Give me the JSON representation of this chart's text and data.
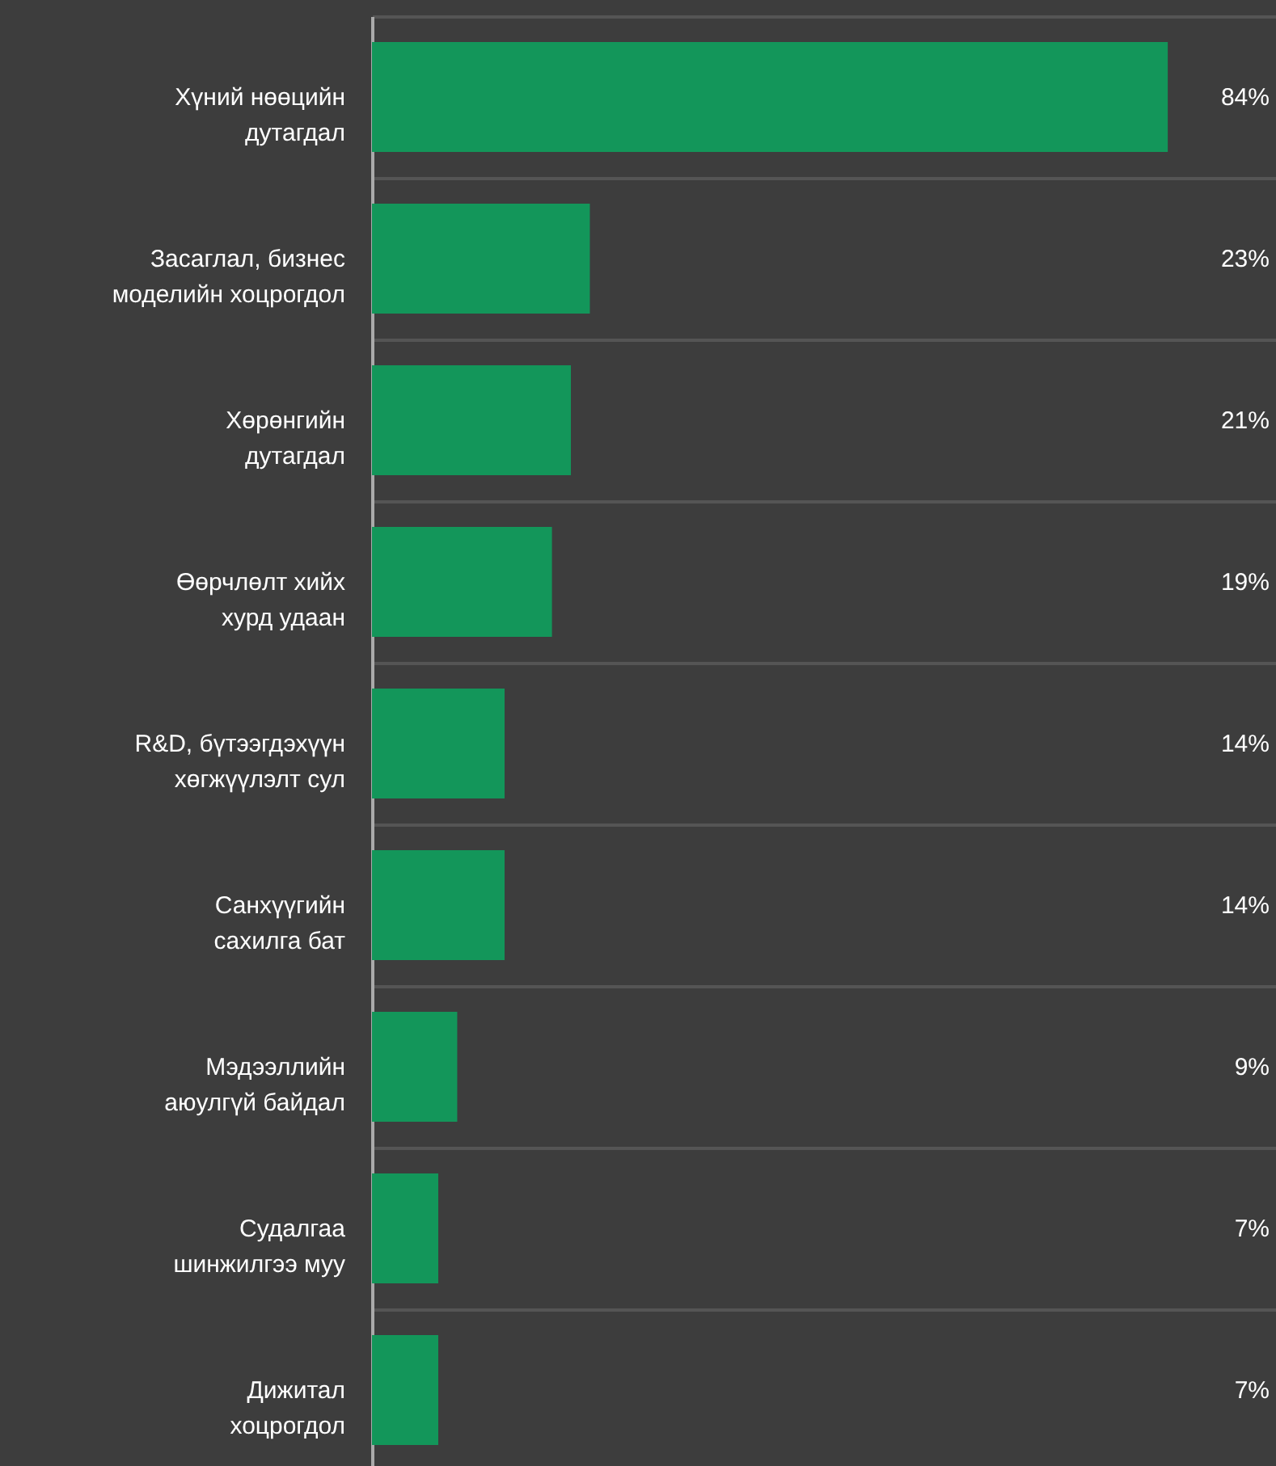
{
  "chart_data": {
    "type": "bar",
    "orientation": "horizontal",
    "categories": [
      "Хүний нөөцийн\nдутагдал",
      "Засаглал, бизнес\nмоделийн хоцрогдол",
      "Хөрөнгийн\nдутагдал",
      "Өөрчлөлт хийх \nхурд удаан",
      "R&D, бүтээгдэхүүн\nхөгжүүлэлт сул",
      "Санхүүгийн \nсахилга бат",
      "Мэдээллийн\nаюулгүй байдал",
      "Судалгаа\nшинжилгээ муу",
      "Дижитал\nхоцрогдол"
    ],
    "values": [
      84,
      23,
      21,
      19,
      14,
      14,
      9,
      7,
      7
    ],
    "value_labels": [
      "84%",
      "23%",
      "21%",
      "19%",
      "14%",
      "14%",
      "9%",
      "7%",
      "7%"
    ],
    "color": "#13965a",
    "grid": "y"
  }
}
